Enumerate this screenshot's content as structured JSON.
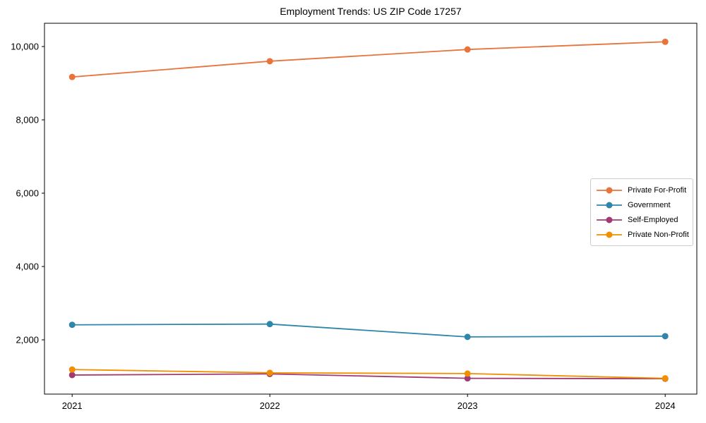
{
  "title": "Employment Trends: US ZIP Code 17257",
  "chart_data": {
    "type": "line",
    "title": "Employment Trends: US ZIP Code 17257",
    "xlabel": "",
    "ylabel": "",
    "x": [
      2021,
      2022,
      2023,
      2024
    ],
    "series": [
      {
        "name": "Private For-Profit",
        "color": "#E8743B",
        "values": [
          9170,
          9600,
          9920,
          10130
        ]
      },
      {
        "name": "Government",
        "color": "#2E86AB",
        "values": [
          2410,
          2430,
          2080,
          2100
        ]
      },
      {
        "name": "Self-Employed",
        "color": "#A23B72",
        "values": [
          1040,
          1070,
          950,
          940
        ]
      },
      {
        "name": "Private Non-Profit",
        "color": "#F18F01",
        "values": [
          1190,
          1100,
          1080,
          950
        ]
      }
    ],
    "xlim": [
      2020.86,
      2024.16
    ],
    "ylim": [
      520,
      10635
    ],
    "xticks": [
      2021,
      2022,
      2023,
      2024
    ],
    "xtick_labels": [
      "2021",
      "2022",
      "2023",
      "2024"
    ],
    "yticks": [
      2000,
      4000,
      6000,
      8000,
      10000
    ],
    "ytick_labels": [
      "2,000",
      "4,000",
      "6,000",
      "8,000",
      "10,000"
    ],
    "grid": false,
    "legend_position": "center-right",
    "marker": "circle"
  }
}
